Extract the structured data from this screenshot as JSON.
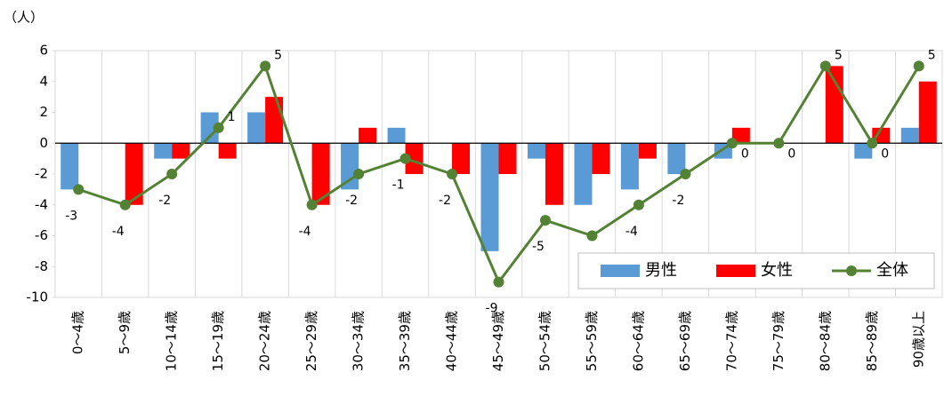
{
  "chart_data": {
    "type": "bar_line",
    "y_axis_label": "（人）",
    "categories": [
      "0～4歳",
      "5～9歳",
      "10～14歳",
      "15～19歳",
      "20～24歳",
      "25～29歳",
      "30～34歳",
      "35～39歳",
      "40～44歳",
      "45～49歳",
      "50～54歳",
      "55～59歳",
      "60～64歳",
      "65～69歳",
      "70～74歳",
      "75～79歳",
      "80～84歳",
      "85～89歳",
      "90歳以上"
    ],
    "series": [
      {
        "name": "男性",
        "type": "bar",
        "color": "#5b9bd5",
        "values": [
          -3,
          0,
          -1,
          2,
          2,
          0,
          -3,
          1,
          0,
          -7,
          -1,
          -4,
          -3,
          -2,
          -1,
          0,
          0,
          -1,
          1
        ]
      },
      {
        "name": "女性",
        "type": "bar",
        "color": "#ff0000",
        "values": [
          0,
          -4,
          -1,
          -1,
          3,
          -4,
          1,
          -2,
          -2,
          -2,
          -4,
          -2,
          -1,
          0,
          1,
          0,
          5,
          1,
          4
        ]
      },
      {
        "name": "全体",
        "type": "line",
        "color": "#548235",
        "values": [
          -3,
          -4,
          -2,
          1,
          5,
          -4,
          -2,
          -1,
          -2,
          -9,
          -5,
          -6,
          -4,
          -2,
          0,
          0,
          5,
          0,
          5
        ]
      }
    ],
    "ylim": [
      -10,
      6
    ],
    "yticks": [
      -10,
      -8,
      -6,
      -4,
      -2,
      0,
      2,
      4,
      6
    ],
    "legend": "lower right"
  }
}
